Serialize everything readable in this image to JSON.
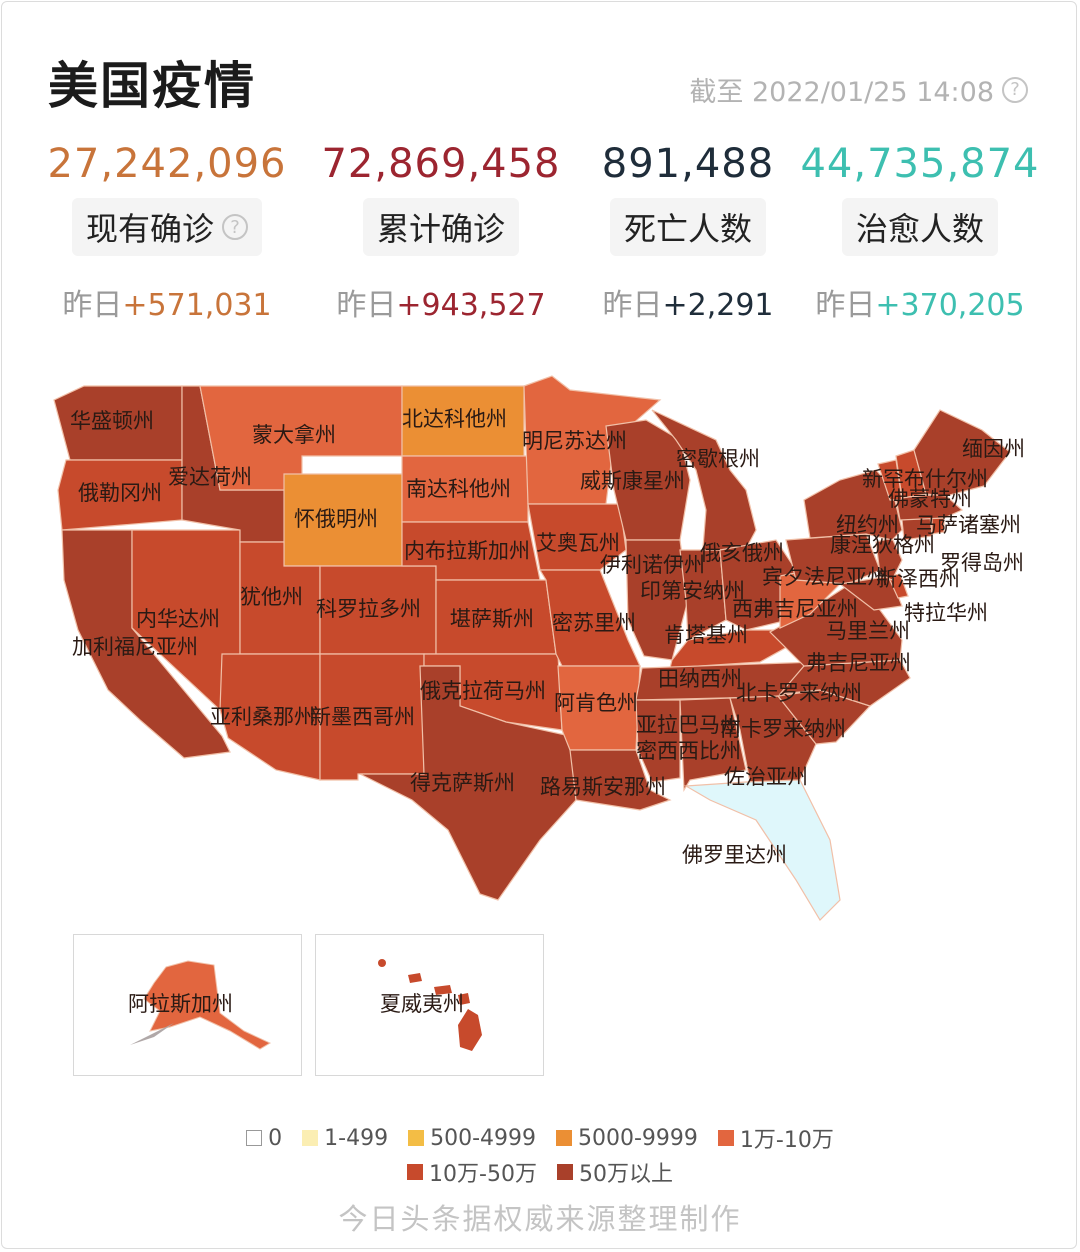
{
  "header": {
    "title": "美国疫情",
    "as_of": "截至 2022/01/25 14:08"
  },
  "stats": [
    {
      "value": "27,242,096",
      "label": "现有确诊",
      "yesterday_prefix": "昨日",
      "yesterday_value": "+571,031",
      "color": "#c8743a"
    },
    {
      "value": "72,869,458",
      "label": "累计确诊",
      "yesterday_prefix": "昨日",
      "yesterday_value": "+943,527",
      "color": "#9c2530"
    },
    {
      "value": "891,488",
      "label": "死亡人数",
      "yesterday_prefix": "昨日",
      "yesterday_value": "+2,291",
      "color": "#1f2d3a"
    },
    {
      "value": "44,735,874",
      "label": "治愈人数",
      "yesterday_prefix": "昨日",
      "yesterday_value": "+370,205",
      "color": "#3dbfb0"
    }
  ],
  "states": {
    "wa": "华盛顿州",
    "or": "俄勒冈州",
    "ca": "加利福尼亚州",
    "id": "爱达荷州",
    "nv": "内华达州",
    "mt": "蒙大拿州",
    "wy": "怀俄明州",
    "ut": "犹他州",
    "az": "亚利桑那州",
    "co": "科罗拉多州",
    "nm": "新墨西哥州",
    "nd": "北达科他州",
    "sd": "南达科他州",
    "ne": "内布拉斯加州",
    "ks": "堪萨斯州",
    "ok": "俄克拉荷马州",
    "tx": "得克萨斯州",
    "mn": "明尼苏达州",
    "ia": "艾奥瓦州",
    "mo": "密苏里州",
    "ar": "阿肯色州",
    "la": "路易斯安那州",
    "wi": "威斯康星州",
    "il": "伊利诺伊州",
    "mi": "密歇根州",
    "in": "印第安纳州",
    "oh": "俄亥俄州",
    "ky": "肯塔基州",
    "tn": "田纳西州",
    "ms": "密西西比州",
    "al": "亚拉巴马州",
    "ga": "佐治亚州",
    "fl": "佛罗里达州",
    "sc": "南卡罗来纳州",
    "nc": "北卡罗来纳州",
    "va": "弗吉尼亚州",
    "wv": "西弗吉尼亚州",
    "pa": "宾夕法尼亚州",
    "ny": "纽约州",
    "md": "马里兰州",
    "de": "特拉华州",
    "nj": "新泽西州",
    "ct": "康涅狄格州",
    "ri": "罗得岛州",
    "ma": "马萨诸塞州",
    "vt": "佛蒙特州",
    "nh": "新罕布什尔州",
    "me": "缅因州",
    "ak": "阿拉斯加州",
    "hi": "夏威夷州"
  },
  "colors": {
    "b0": "#ffffff",
    "b1": "#fbeeb3",
    "b2": "#f3bd45",
    "b3": "#eb8f34",
    "b4": "#e2663f",
    "b5": "#c74a2c",
    "b6": "#a9402a",
    "fl": "#dff7fb"
  },
  "legend": [
    {
      "label": "0",
      "color": "#ffffff"
    },
    {
      "label": "1-499",
      "color": "#fbeeb3"
    },
    {
      "label": "500-4999",
      "color": "#f3bd45"
    },
    {
      "label": "5000-9999",
      "color": "#eb8f34"
    },
    {
      "label": "1万-10万",
      "color": "#e2663f"
    },
    {
      "label": "10万-50万",
      "color": "#c74a2c"
    },
    {
      "label": "50万以上",
      "color": "#a9402a"
    }
  ],
  "footer": "今日头条据权威来源整理制作"
}
